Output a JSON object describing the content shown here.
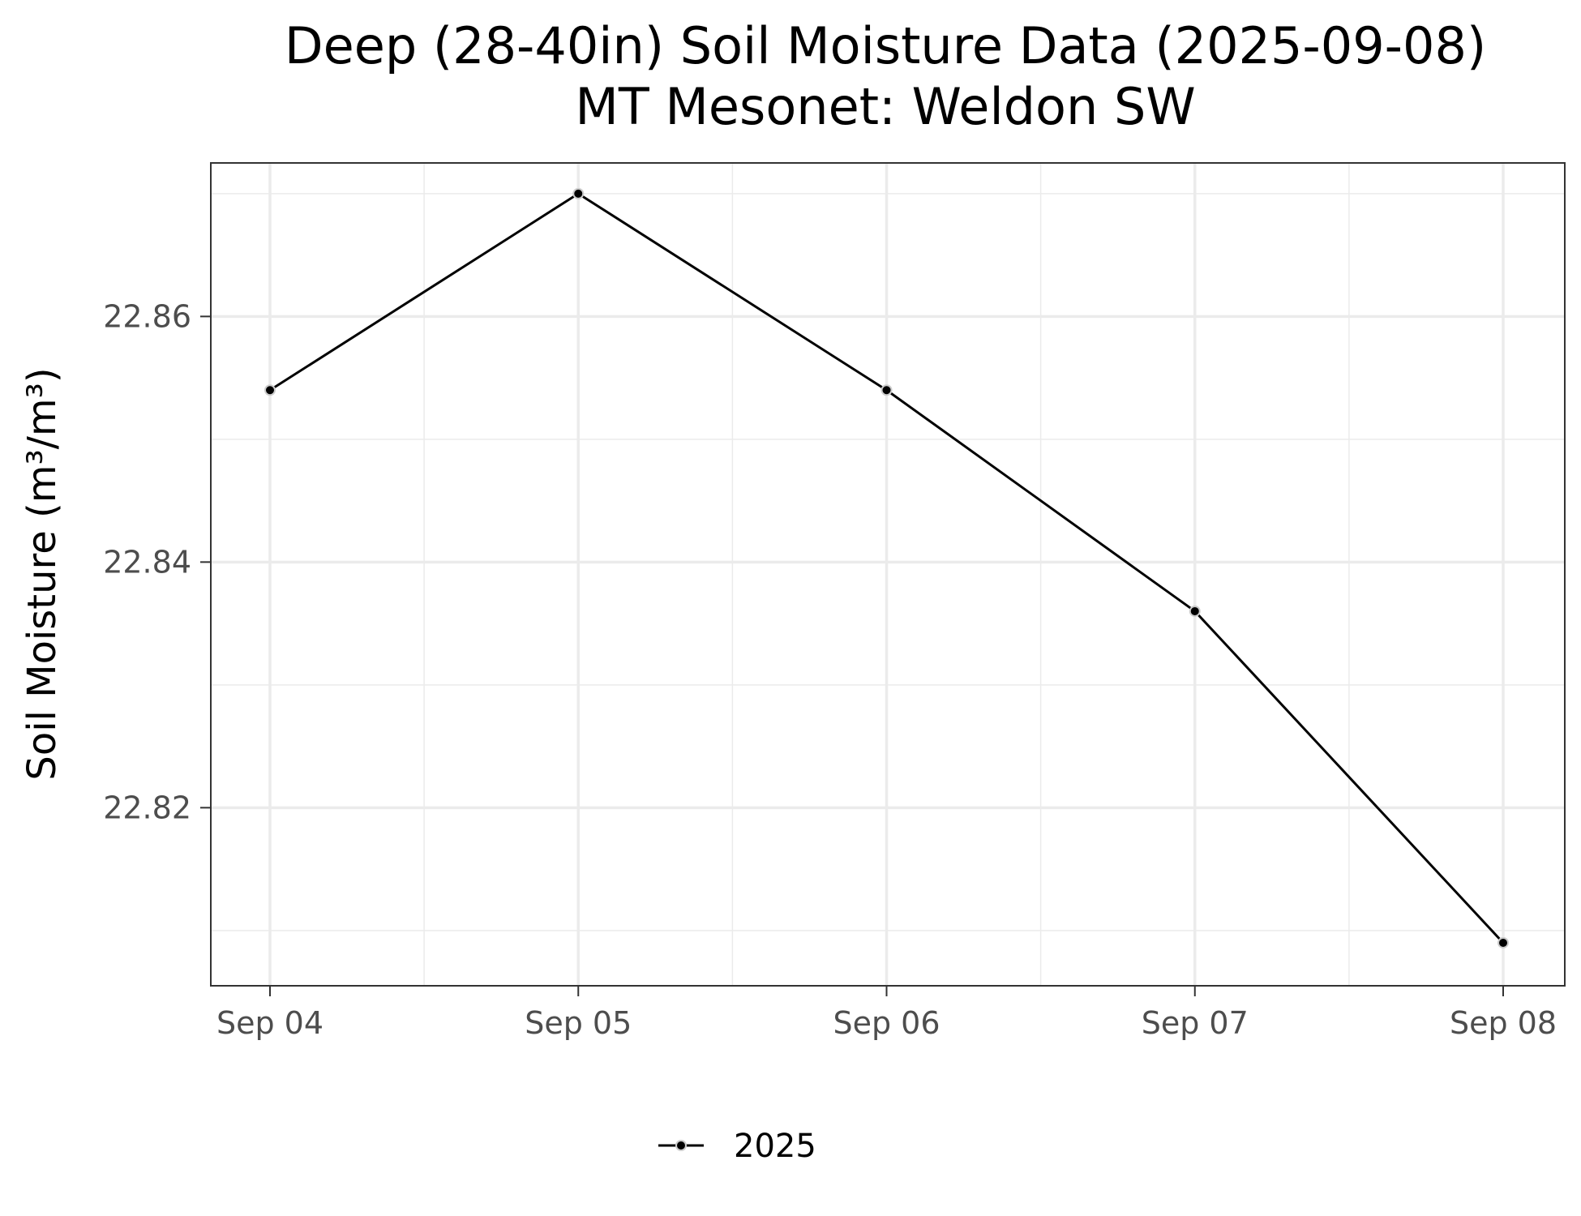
{
  "chart_data": {
    "type": "line",
    "title": "Deep (28-40in) Soil Moisture Data (2025-09-08)",
    "subtitle": "MT Mesonet: Weldon SW",
    "xlabel": "",
    "ylabel": "Soil Moisture (m³/m³)",
    "x": [
      "2025-09-04",
      "2025-09-05",
      "2025-09-06",
      "2025-09-07",
      "2025-09-08"
    ],
    "x_tick_labels": [
      "Sep 04",
      "Sep 05",
      "Sep 06",
      "Sep 07",
      "Sep 08"
    ],
    "series": [
      {
        "name": "2025",
        "values": [
          22.854,
          22.87,
          22.854,
          22.836,
          22.809
        ],
        "color": "#000000",
        "marker_color": "#000000",
        "marker_outline": "#cccccc"
      }
    ],
    "ylim": [
      22.8055,
      22.8725
    ],
    "y_ticks": [
      22.82,
      22.84,
      22.86
    ],
    "y_tick_labels": [
      "22.82",
      "22.84",
      "22.86"
    ],
    "y_minor_ticks": [
      22.81,
      22.83,
      22.85,
      22.87
    ],
    "grid": true,
    "legend_position": "bottom",
    "colors": {
      "grid": "#ebebeb",
      "panel_border": "#333333",
      "tick": "#333333"
    }
  }
}
